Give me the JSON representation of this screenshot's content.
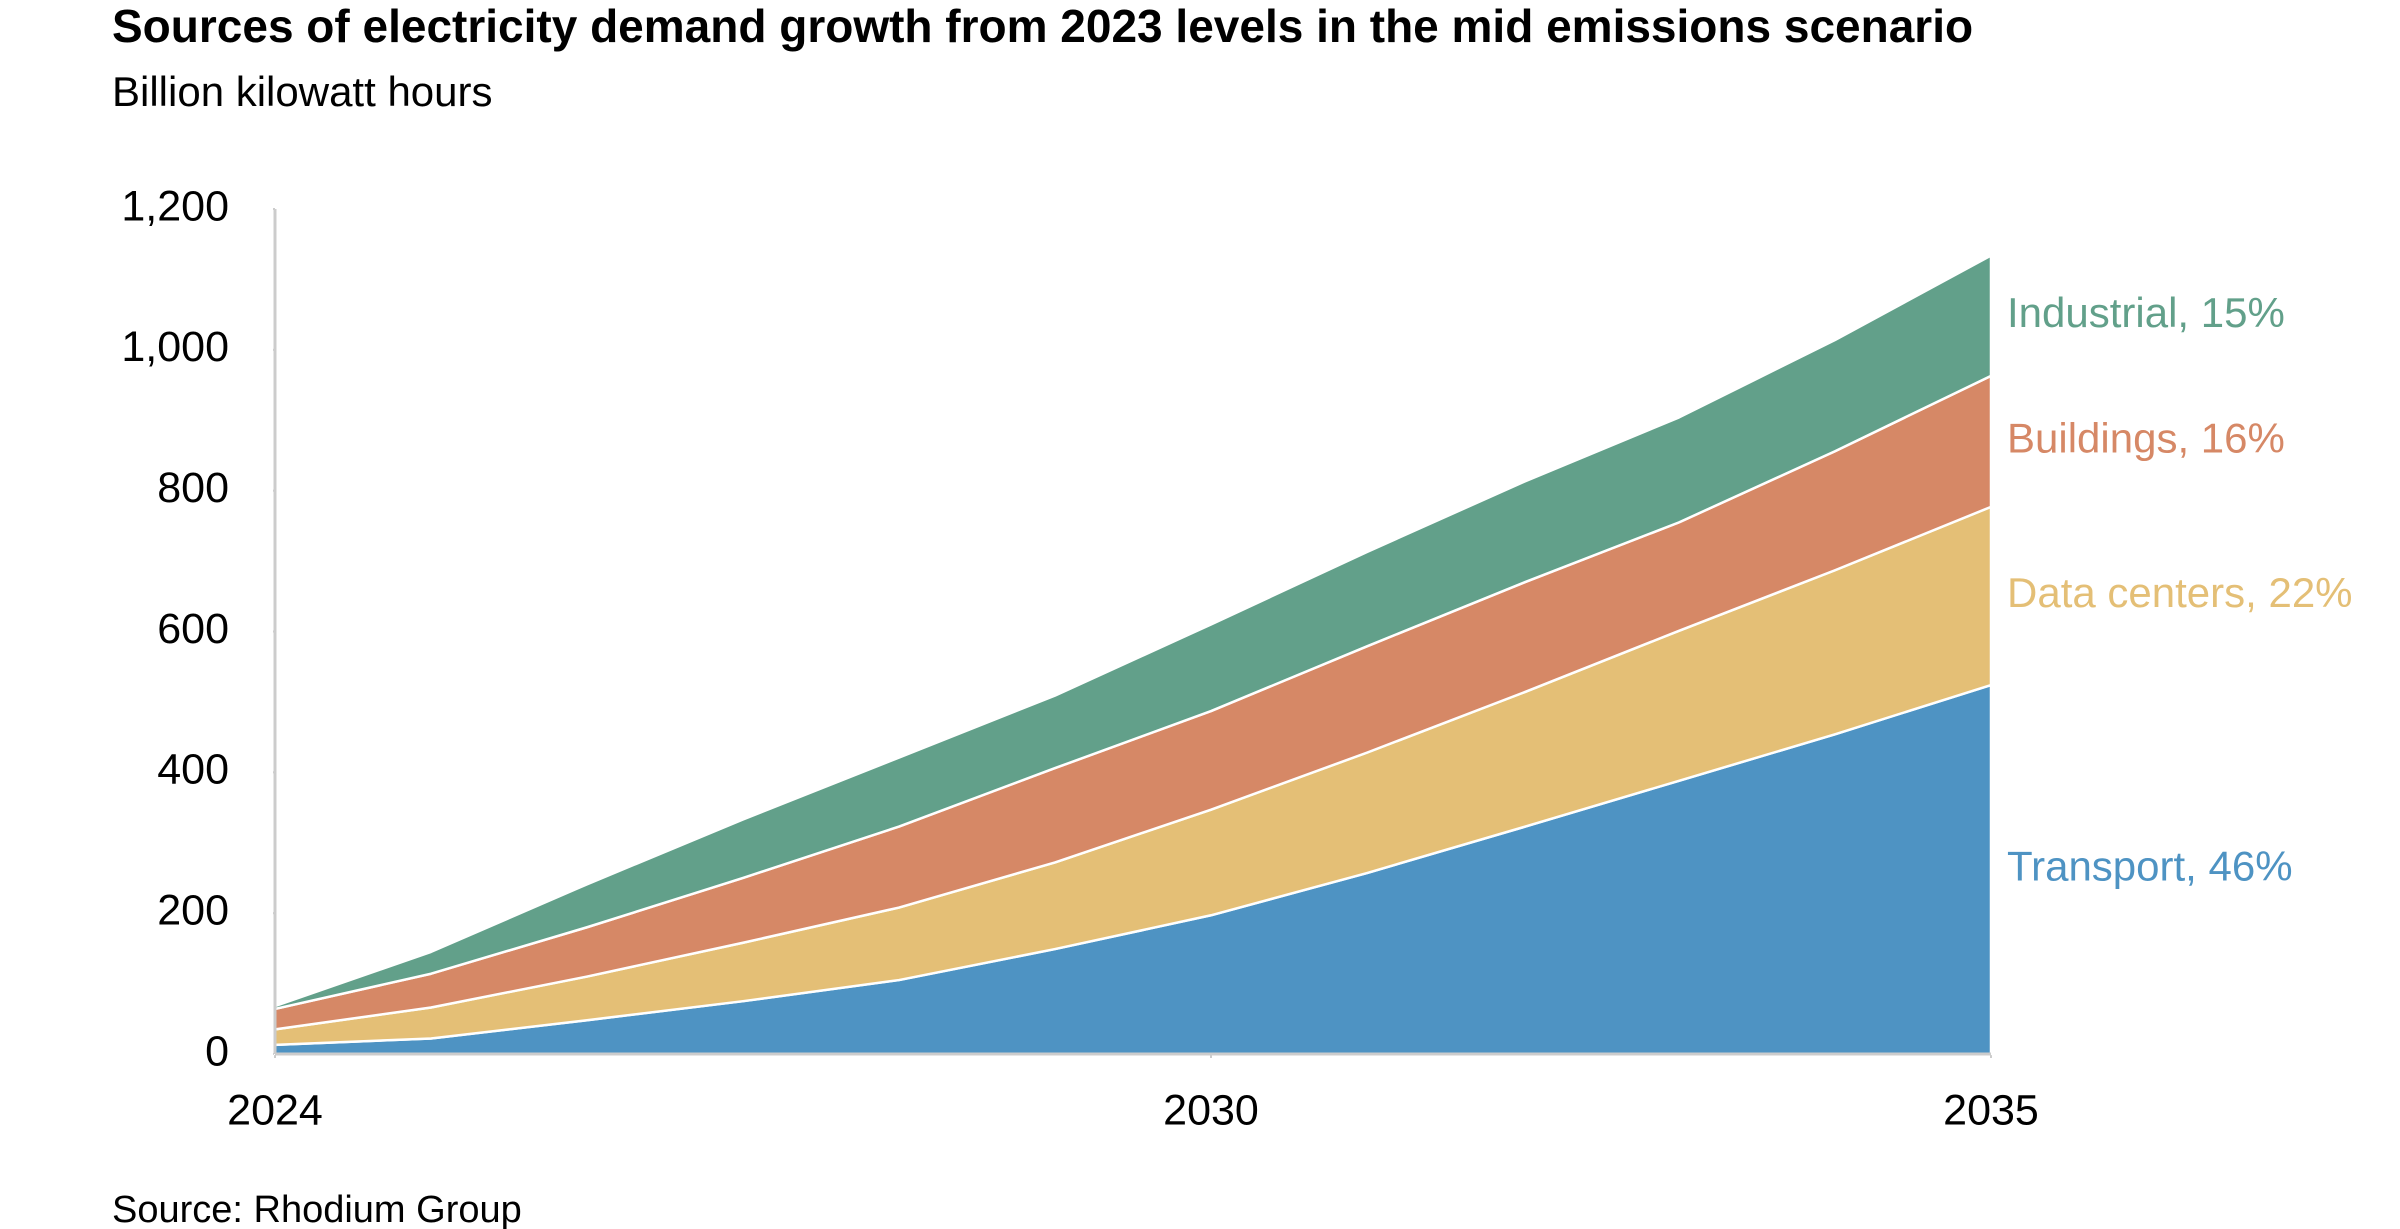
{
  "chart_data": {
    "type": "stacked_area",
    "title": "Sources of electricity demand growth from 2023 levels in the mid emissions scenario",
    "subtitle": "Billion kilowatt hours",
    "source": "Source: Rhodium Group",
    "x": [
      2024,
      2025,
      2026,
      2027,
      2028,
      2029,
      2030,
      2031,
      2032,
      2033,
      2034,
      2035
    ],
    "xlim": [
      2024,
      2035
    ],
    "xticks": [
      2024,
      2030,
      2035
    ],
    "ylim": [
      0,
      1200
    ],
    "yticks": [
      0,
      200,
      400,
      600,
      800,
      {
        "value": 1000,
        "label": "1,000"
      },
      {
        "value": 1200,
        "label": "1,200"
      }
    ],
    "series": [
      {
        "name": "Transport, 46%",
        "color": "#4e93c3",
        "values": [
          13,
          22,
          48,
          75,
          105,
          149,
          197,
          257,
          322,
          388,
          454,
          524
        ]
      },
      {
        "name": "Data centers, 22%",
        "color": "#e4bf76",
        "values": [
          22,
          44,
          62,
          83,
          103,
          123,
          150,
          171,
          191,
          213,
          233,
          253
        ]
      },
      {
        "name": "Buildings, 16%",
        "color": "#d68866",
        "values": [
          29,
          48,
          70,
          92,
          115,
          134,
          140,
          151,
          156,
          154,
          169,
          186
        ]
      },
      {
        "name": "Industrial, 15%",
        "color": "#62a08a",
        "values": [
          4,
          31,
          61,
          83,
          98,
          103,
          123,
          134,
          143,
          149,
          158,
          171
        ]
      }
    ]
  }
}
